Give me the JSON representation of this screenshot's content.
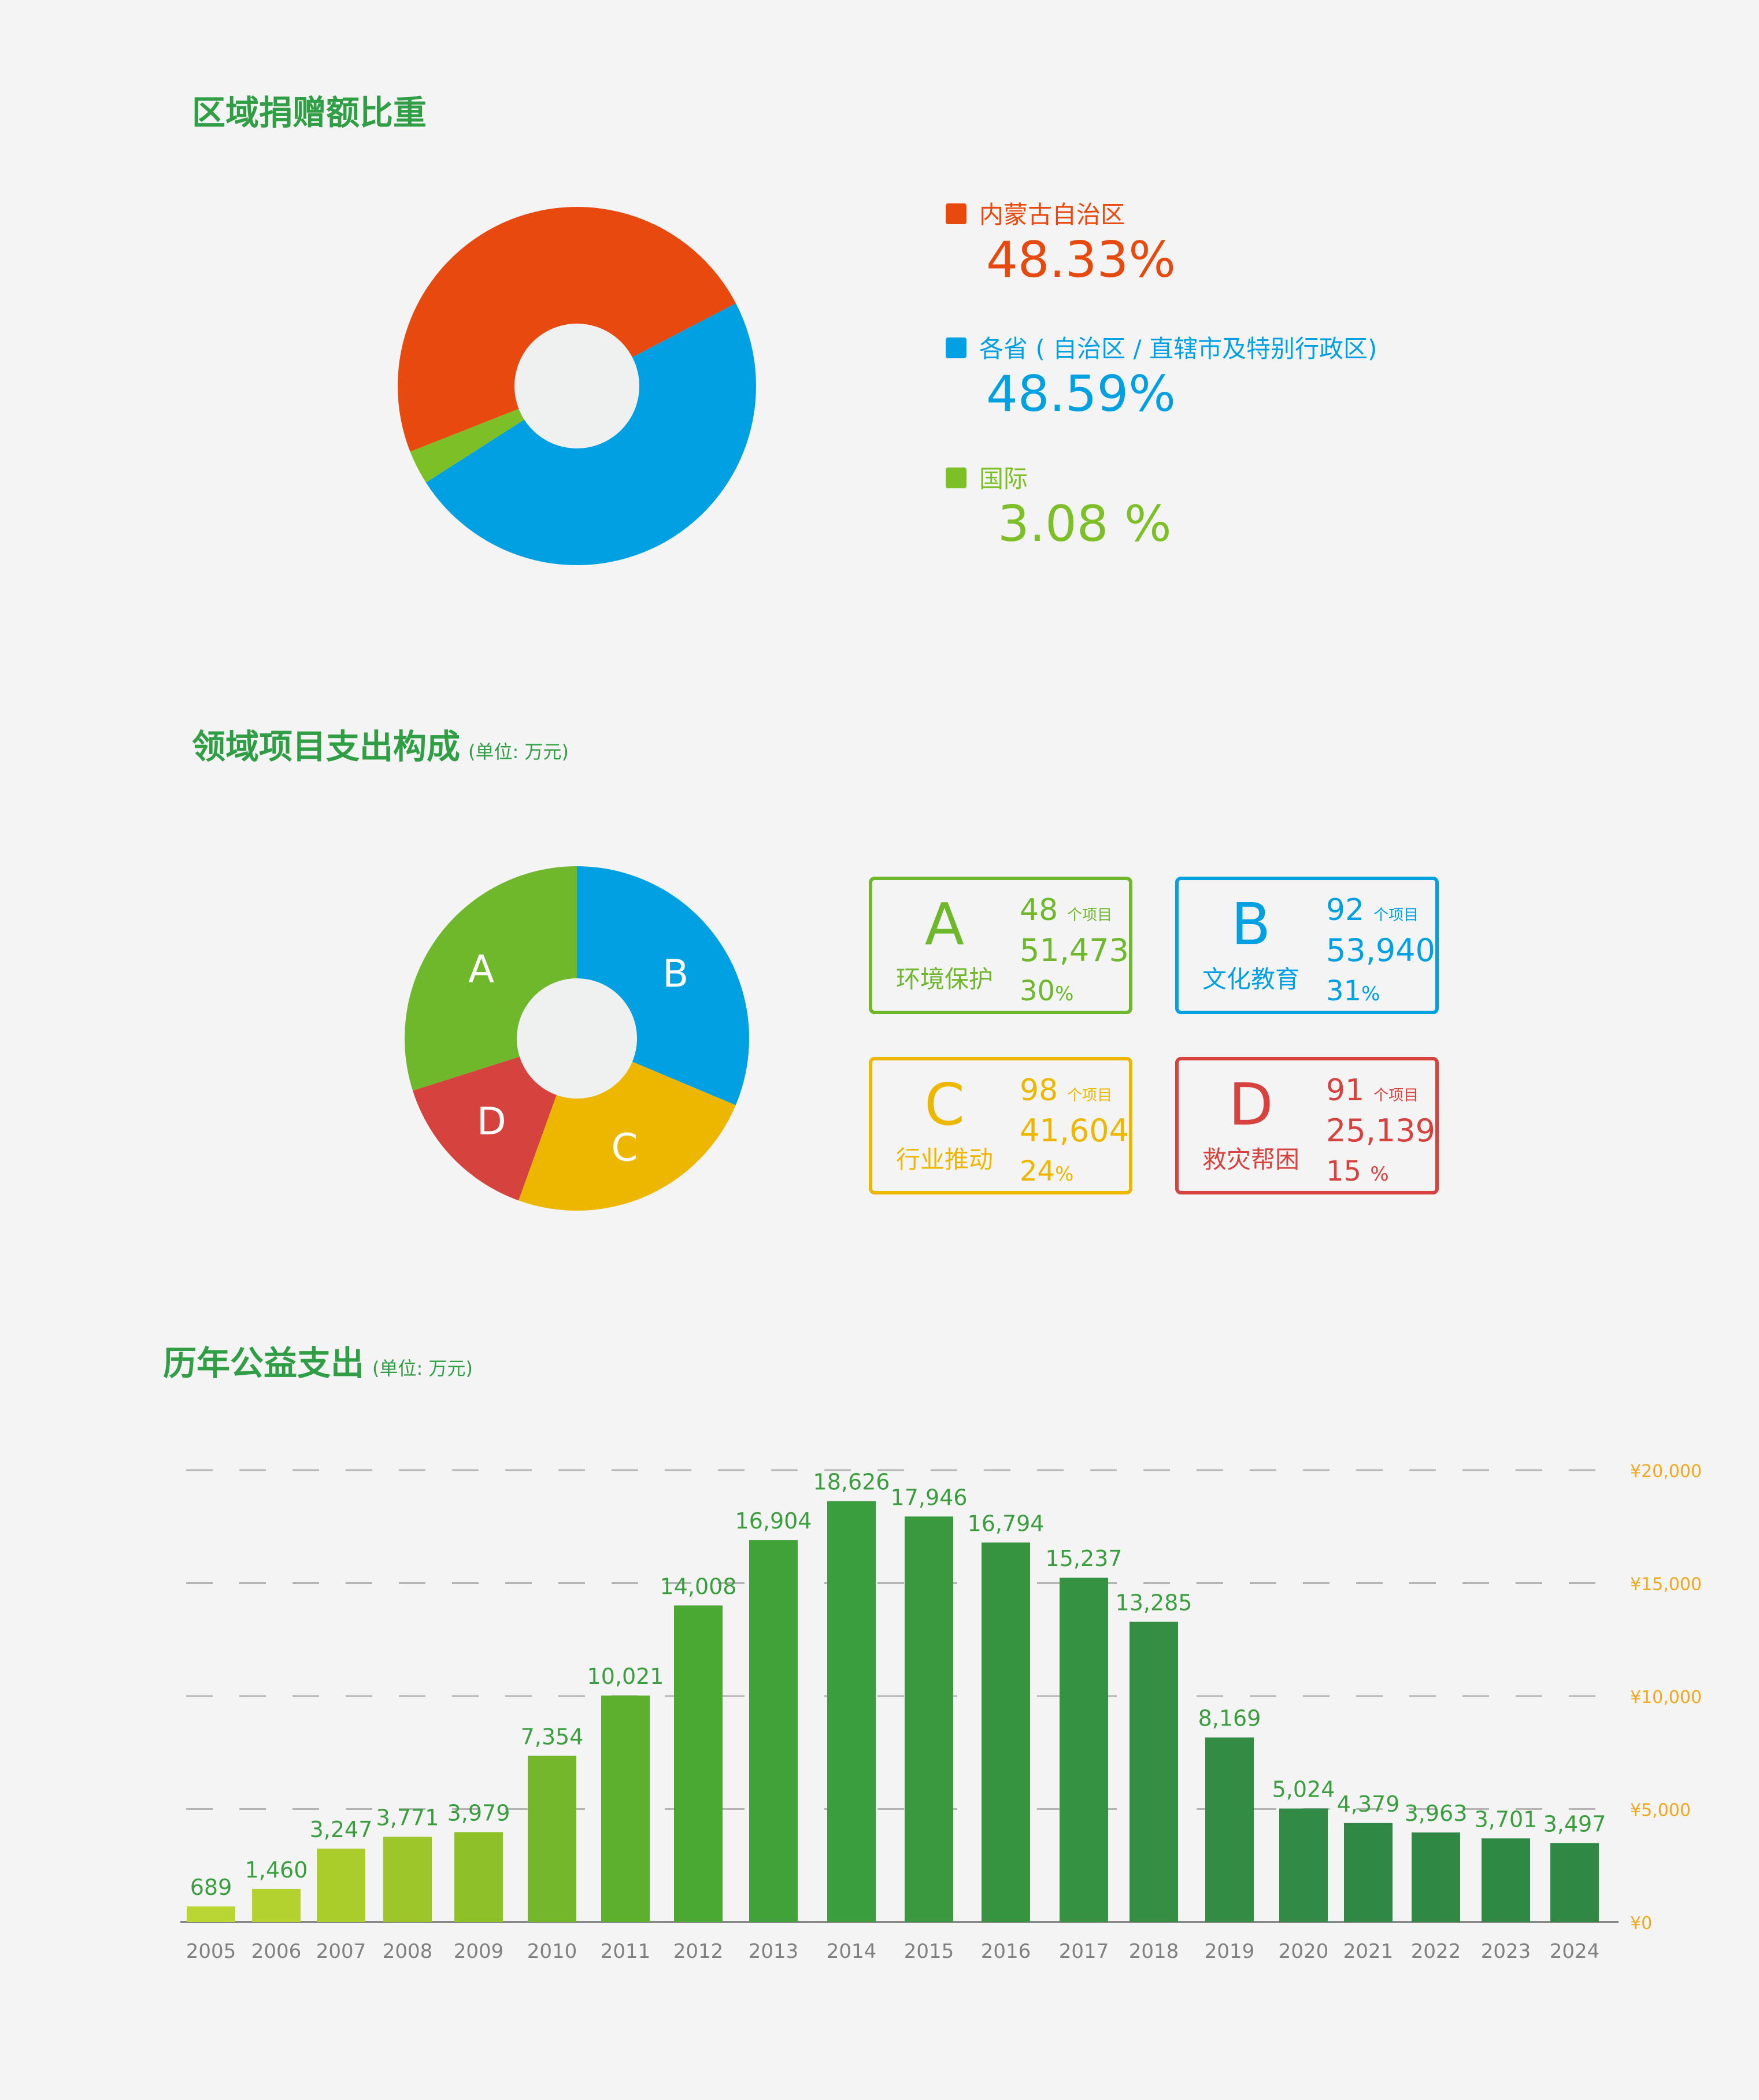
{
  "section1": {
    "title": "区域捐赠额比重"
  },
  "section2": {
    "title": "领域项目支出构成",
    "unit": "(单位: 万元)"
  },
  "section3": {
    "title": "历年公益支出",
    "unit": "(单位: 万元)"
  },
  "chart_data": [
    {
      "type": "pie",
      "title": "区域捐赠额比重",
      "categories": [
        "内蒙古自治区",
        "各省 ( 自治区 / 直辖市及特别行政区)",
        "国际"
      ],
      "values": [
        48.33,
        48.59,
        3.08
      ],
      "value_labels": [
        "48.33%",
        "48.59%",
        "3.08 %"
      ],
      "colors": [
        "#e8490f",
        "#00a0e3",
        "#7cbf26"
      ],
      "donut": true
    },
    {
      "type": "pie",
      "title": "领域项目支出构成",
      "categories": [
        "A",
        "B",
        "C",
        "D"
      ],
      "names": [
        "环境保护",
        "文化教育",
        "行业推动",
        "救灾帮困"
      ],
      "project_counts": [
        "48",
        "92",
        "98",
        "91"
      ],
      "count_unit": "个项目",
      "values": [
        51473,
        53940,
        41604,
        25139
      ],
      "amount_labels": [
        "51,473",
        "53,940",
        "41,604",
        "25,139"
      ],
      "percent_labels": [
        "30",
        "31",
        "24",
        "15 "
      ],
      "percent_sign": "%",
      "colors": [
        "#6fb82c",
        "#00a0e3",
        "#edb700",
        "#d6423e"
      ],
      "donut": true
    },
    {
      "type": "bar",
      "title": "历年公益支出",
      "categories": [
        "2005",
        "2006",
        "2007",
        "2008",
        "2009",
        "2010",
        "2011",
        "2012",
        "2013",
        "2014",
        "2015",
        "2016",
        "2017",
        "2018",
        "2019",
        "2020",
        "2021",
        "2022",
        "2023",
        "2024"
      ],
      "values": [
        689,
        1460,
        3247,
        3771,
        3979,
        7354,
        10021,
        14008,
        16904,
        18626,
        17946,
        16794,
        15237,
        13285,
        8169,
        5024,
        4379,
        3963,
        3701,
        3497
      ],
      "value_labels": [
        "689",
        "1,460",
        "3,247",
        "3,771",
        "3,979",
        "7,354",
        "10,021",
        "14,008",
        "16,904",
        "18,626",
        "17,946",
        "16,794",
        "15,237",
        "13,285",
        "8,169",
        "5,024",
        "4,379",
        "3,963",
        "3,701",
        "3,497"
      ],
      "colors": [
        "#b9d532",
        "#b4d22f",
        "#aacd2c",
        "#9cc62a",
        "#8ec028",
        "#73b82a",
        "#5db02e",
        "#49a933",
        "#3fa33a",
        "#3a9e3e",
        "#38993f",
        "#369440",
        "#359242",
        "#348f43",
        "#328c44",
        "#318a45",
        "#308845",
        "#308845",
        "#308845",
        "#308845"
      ],
      "ylim": [
        0,
        20000
      ],
      "yticks": [
        0,
        5000,
        10000,
        15000,
        20000
      ],
      "ytick_labels": [
        "¥0",
        "¥5,000",
        "¥10,000",
        "¥15,000",
        "¥20,000"
      ],
      "grid": true,
      "grid_style": "dashed",
      "axis_position": "right"
    }
  ]
}
